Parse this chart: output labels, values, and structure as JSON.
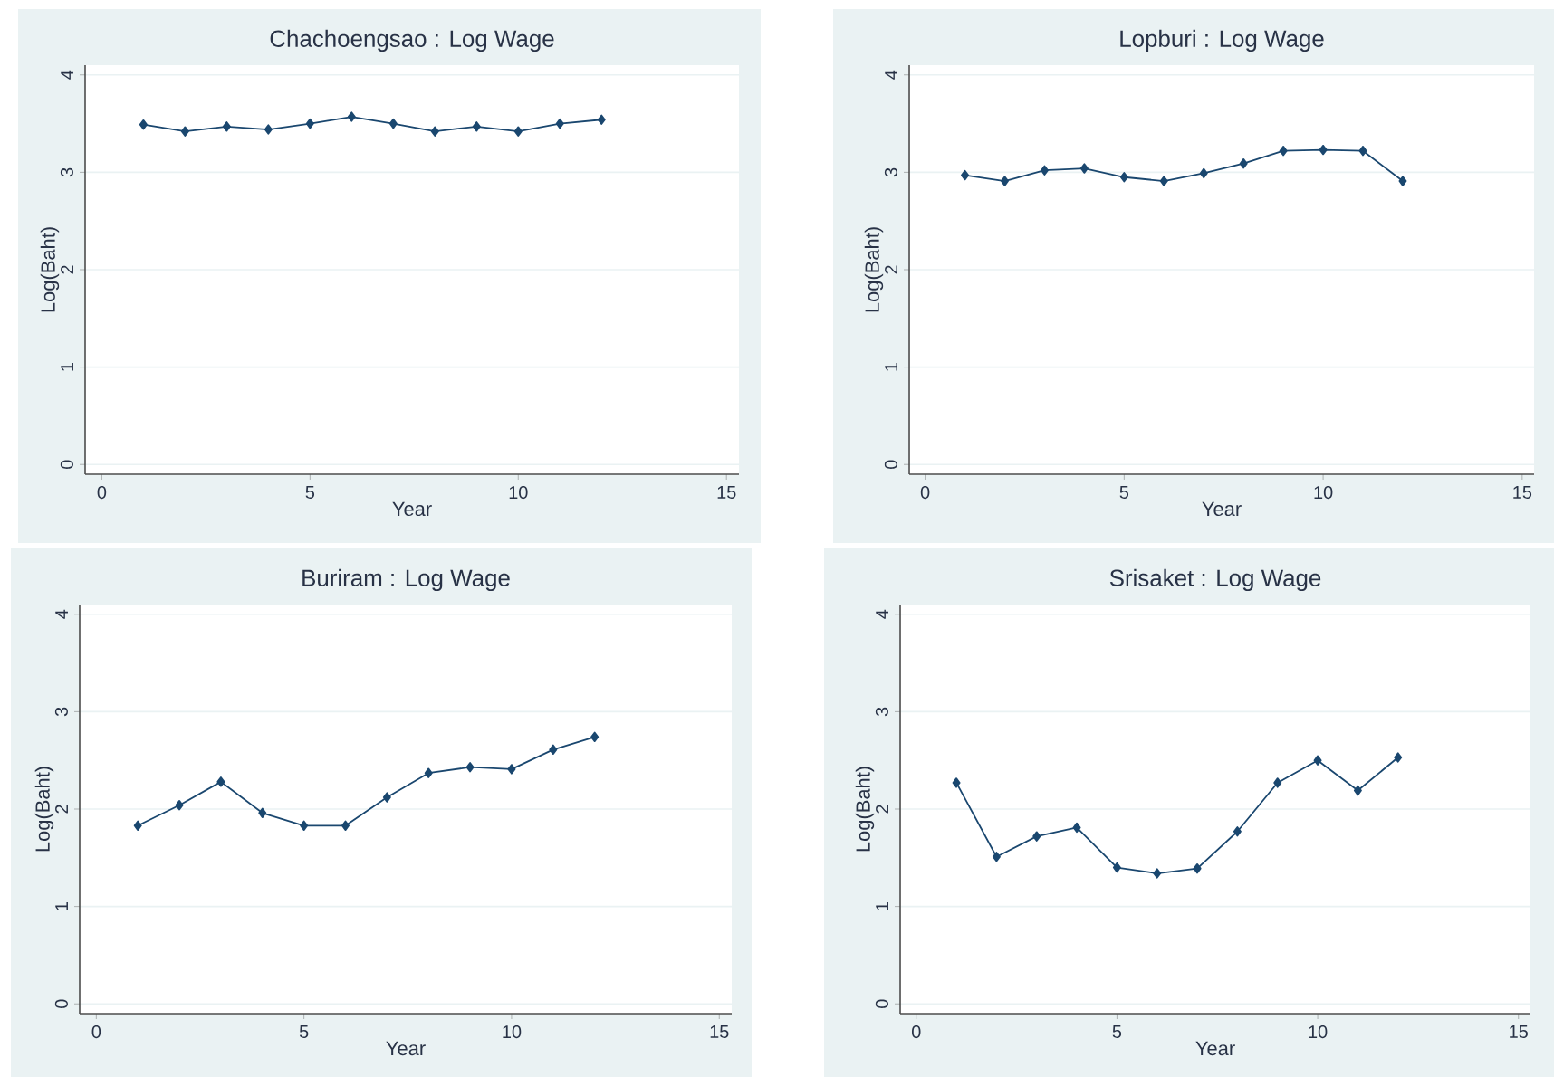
{
  "chart_data": [
    {
      "type": "line",
      "title": "Chachoengsao : Log Wage",
      "xlabel": "Year",
      "ylabel": "Log(Baht)",
      "x": [
        1,
        2,
        3,
        4,
        5,
        6,
        7,
        8,
        9,
        10,
        11,
        12
      ],
      "values": [
        3.49,
        3.42,
        3.47,
        3.44,
        3.5,
        3.57,
        3.5,
        3.42,
        3.47,
        3.42,
        3.5,
        3.54
      ],
      "color": "#1a476f",
      "xlim": [
        -0.4,
        15.3
      ],
      "ylim": [
        -0.1,
        4.1
      ],
      "xticks": [
        0,
        5,
        10,
        15
      ],
      "yticks": [
        0,
        1,
        2,
        3,
        4
      ],
      "grid": "y",
      "marker": "diamond"
    },
    {
      "type": "line",
      "title": "Lopburi : Log Wage",
      "xlabel": "Year",
      "ylabel": "Log(Baht)",
      "x": [
        1,
        2,
        3,
        4,
        5,
        6,
        7,
        8,
        9,
        10,
        11,
        12
      ],
      "values": [
        2.97,
        2.91,
        3.02,
        3.04,
        2.95,
        2.91,
        2.99,
        3.09,
        3.22,
        3.23,
        3.22,
        2.91
      ],
      "color": "#1a476f",
      "xlim": [
        -0.4,
        15.3
      ],
      "ylim": [
        -0.1,
        4.1
      ],
      "xticks": [
        0,
        5,
        10,
        15
      ],
      "yticks": [
        0,
        1,
        2,
        3,
        4
      ],
      "grid": "y",
      "marker": "diamond"
    },
    {
      "type": "line",
      "title": "Buriram : Log Wage",
      "xlabel": "Year",
      "ylabel": "Log(Baht)",
      "x": [
        1,
        2,
        3,
        4,
        5,
        6,
        7,
        8,
        9,
        10,
        11,
        12
      ],
      "values": [
        1.83,
        2.04,
        2.28,
        1.96,
        1.83,
        1.83,
        2.12,
        2.37,
        2.43,
        2.41,
        2.61,
        2.74
      ],
      "color": "#1a476f",
      "xlim": [
        -0.4,
        15.3
      ],
      "ylim": [
        -0.1,
        4.1
      ],
      "xticks": [
        0,
        5,
        10,
        15
      ],
      "yticks": [
        0,
        1,
        2,
        3,
        4
      ],
      "grid": "y",
      "marker": "diamond"
    },
    {
      "type": "line",
      "title": "Srisaket : Log Wage",
      "xlabel": "Year",
      "ylabel": "Log(Baht)",
      "x": [
        1,
        2,
        3,
        4,
        5,
        6,
        7,
        8,
        9,
        10,
        11,
        12
      ],
      "values": [
        2.27,
        1.51,
        1.72,
        1.81,
        1.4,
        1.34,
        1.39,
        1.77,
        2.27,
        2.5,
        2.19,
        2.53
      ],
      "color": "#1a476f",
      "xlim": [
        -0.4,
        15.3
      ],
      "ylim": [
        -0.1,
        4.1
      ],
      "xticks": [
        0,
        5,
        10,
        15
      ],
      "yticks": [
        0,
        1,
        2,
        3,
        4
      ],
      "grid": "y",
      "marker": "diamond"
    }
  ]
}
